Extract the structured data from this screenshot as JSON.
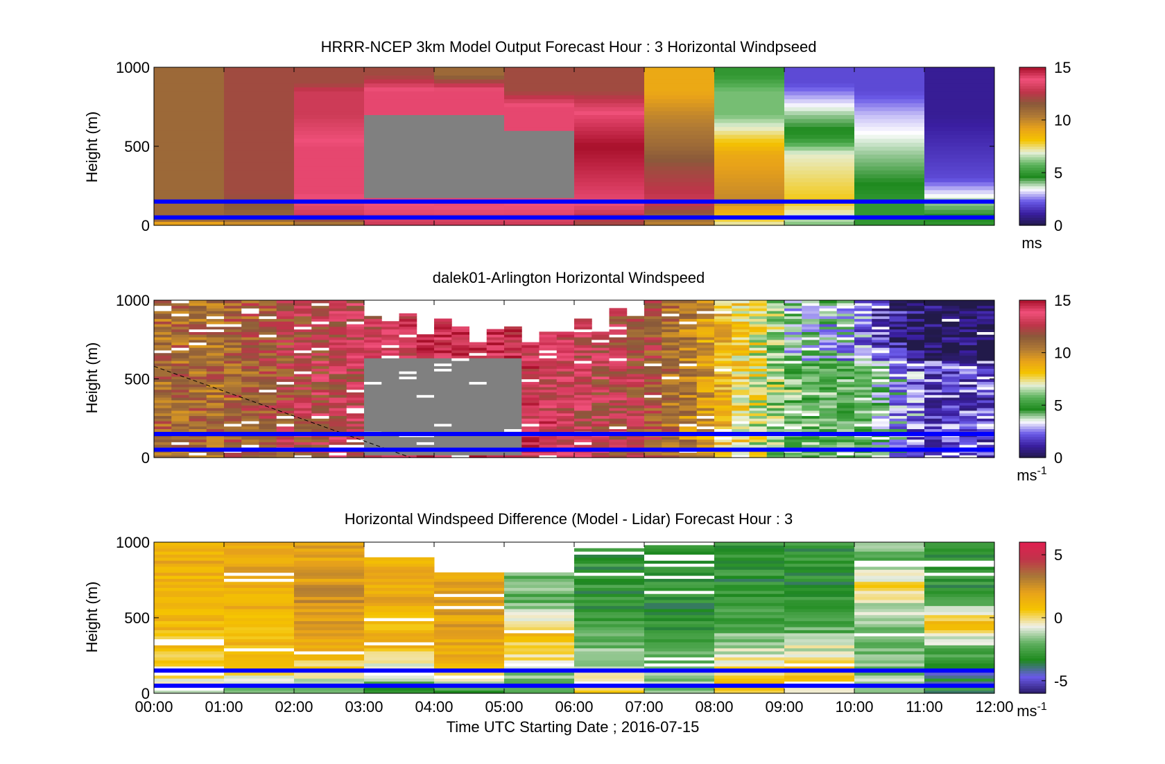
{
  "figure": {
    "xlabel": "Time UTC  Starting Date ; 2016-07-15",
    "xticks": [
      "00:00",
      "01:00",
      "02:00",
      "03:00",
      "04:00",
      "05:00",
      "06:00",
      "07:00",
      "08:00",
      "09:00",
      "10:00",
      "11:00",
      "12:00"
    ]
  },
  "colors": {
    "blue_line": "#0000ff",
    "missing": "#808080",
    "ws_stops": [
      "#221a4a",
      "#3a1ea0",
      "#6a5ae8",
      "#ffffff",
      "#1e8a1e",
      "#5ab25a",
      "#e6f0d8",
      "#f5c400",
      "#e8a21a",
      "#b07a35",
      "#8a5a3a",
      "#c0344a",
      "#f0507a",
      "#a8102a"
    ],
    "diff_stops": [
      "#2a1a6a",
      "#6a5ae8",
      "#1e8a1e",
      "#60b060",
      "#f0f0e8",
      "#f5c400",
      "#e8a21a",
      "#a87638",
      "#c0344a",
      "#e02050"
    ]
  },
  "chart_data": [
    {
      "type": "heatmap",
      "title": "HRRR-NCEP 3km Model Output   Forecast Hour : 3 Horizontal Windpseed",
      "ylabel": "Height (m)",
      "ylim": [
        0,
        1000
      ],
      "yticks": [
        "1000",
        "500",
        "0"
      ],
      "xlim": [
        "00:00",
        "12:00"
      ],
      "colorbar": {
        "ticks": [
          "15",
          "10",
          "5",
          "0"
        ],
        "label": "ms",
        "range": [
          0,
          15
        ]
      },
      "reference_lines_m": [
        150,
        50
      ],
      "columns": [
        {
          "time": "00:00",
          "levels": [
            [
              0,
              8
            ],
            [
              30,
              11
            ],
            [
              200,
              11
            ],
            [
              500,
              11
            ],
            [
              800,
              11
            ],
            [
              950,
              11
            ]
          ]
        },
        {
          "time": "01:00",
          "levels": [
            [
              0,
              9
            ],
            [
              30,
              11
            ],
            [
              200,
              12
            ],
            [
              500,
              12
            ],
            [
              800,
              12
            ],
            [
              950,
              12
            ]
          ]
        },
        {
          "time": "02:00",
          "levels": [
            [
              0,
              10
            ],
            [
              60,
              13
            ],
            [
              200,
              14
            ],
            [
              500,
              14
            ],
            [
              700,
              13
            ],
            [
              850,
              13
            ],
            [
              900,
              12
            ]
          ]
        },
        {
          "time": "03:00",
          "levels": [
            [
              0,
              13
            ],
            [
              160,
              14
            ],
            [
              700,
              14
            ],
            [
              850,
              14
            ],
            [
              950,
              12
            ]
          ]
        },
        {
          "time": "04:00",
          "levels": [
            [
              0,
              13
            ],
            [
              150,
              14
            ],
            [
              750,
              14
            ],
            [
              850,
              14
            ],
            [
              950,
              11
            ]
          ]
        },
        {
          "time": "05:00",
          "levels": [
            [
              0,
              13
            ],
            [
              160,
              14
            ],
            [
              600,
              14
            ],
            [
              750,
              14
            ],
            [
              850,
              12
            ]
          ]
        },
        {
          "time": "06:00",
          "levels": [
            [
              0,
              12
            ],
            [
              160,
              14
            ],
            [
              500,
              15
            ],
            [
              700,
              14
            ],
            [
              850,
              12
            ]
          ]
        },
        {
          "time": "07:00",
          "levels": [
            [
              0,
              10
            ],
            [
              150,
              13
            ],
            [
              350,
              12
            ],
            [
              500,
              11
            ],
            [
              700,
              10
            ],
            [
              850,
              9
            ]
          ]
        },
        {
          "time": "08:00",
          "levels": [
            [
              0,
              7
            ],
            [
              150,
              10
            ],
            [
              450,
              9
            ],
            [
              700,
              6
            ],
            [
              850,
              6
            ],
            [
              950,
              5
            ]
          ]
        },
        {
          "time": "09:00",
          "levels": [
            [
              0,
              6
            ],
            [
              150,
              8
            ],
            [
              450,
              7
            ],
            [
              550,
              5
            ],
            [
              700,
              4
            ],
            [
              900,
              2
            ]
          ]
        },
        {
          "time": "10:00",
          "levels": [
            [
              0,
              5
            ],
            [
              150,
              5
            ],
            [
              450,
              4
            ],
            [
              700,
              3
            ],
            [
              850,
              2
            ]
          ]
        },
        {
          "time": "11:00",
          "levels": [
            [
              0,
              5
            ],
            [
              150,
              4
            ],
            [
              300,
              2
            ],
            [
              700,
              1
            ],
            [
              950,
              1
            ]
          ]
        }
      ]
    },
    {
      "type": "heatmap",
      "title": "dalek01-Arlington  Horizontal Windspeed",
      "ylabel": "Height (m)",
      "ylim": [
        0,
        1000
      ],
      "yticks": [
        "1000",
        "500",
        "0"
      ],
      "xlim": [
        "00:00",
        "12:00"
      ],
      "colorbar": {
        "ticks": [
          "15",
          "10",
          "5",
          "0"
        ],
        "label": "ms",
        "label_sup": "-1",
        "range": [
          0,
          15
        ]
      },
      "reference_lines_m": [
        150,
        50
      ],
      "dashed_line_m": [
        [
          "00:00",
          580
        ],
        [
          "03:40",
          0
        ]
      ],
      "missing_region": {
        "from": "03:00",
        "to": "05:20",
        "below_m": 650
      },
      "approx_trend": [
        {
          "time": "00:00",
          "value": 11
        },
        {
          "time": "01:00",
          "value": 11
        },
        {
          "time": "02:00",
          "value": 12
        },
        {
          "time": "03:00",
          "value": 13
        },
        {
          "time": "04:00",
          "value": 14
        },
        {
          "time": "05:00",
          "value": 14
        },
        {
          "time": "06:00",
          "value": 13
        },
        {
          "time": "07:00",
          "value": 12
        },
        {
          "time": "08:00",
          "value": 9
        },
        {
          "time": "09:00",
          "value": 6
        },
        {
          "time": "10:00",
          "value": 5
        },
        {
          "time": "11:00",
          "value": 2
        }
      ]
    },
    {
      "type": "heatmap",
      "title": "Horizontal Windspeed Difference (Model - Lidar) Forecast Hour : 3",
      "ylabel": "Height (m)",
      "ylim": [
        0,
        1000
      ],
      "yticks": [
        "1000",
        "500",
        "0"
      ],
      "xlim": [
        "00:00",
        "12:00"
      ],
      "colorbar": {
        "ticks": [
          "5",
          "0",
          "-5"
        ],
        "label": "ms",
        "label_sup": "-1",
        "range": [
          -6,
          6
        ]
      },
      "reference_lines_m": [
        150,
        50
      ],
      "columns": [
        {
          "time": "00:00",
          "levels": [
            [
              0,
              -1
            ],
            [
              150,
              0
            ],
            [
              400,
              1
            ],
            [
              700,
              1
            ],
            [
              900,
              1.5
            ]
          ]
        },
        {
          "time": "01:00",
          "levels": [
            [
              0,
              -2
            ],
            [
              150,
              0
            ],
            [
              300,
              1
            ],
            [
              600,
              1.5
            ],
            [
              900,
              2
            ]
          ]
        },
        {
          "time": "02:00",
          "levels": [
            [
              0,
              -2
            ],
            [
              150,
              0
            ],
            [
              300,
              1.5
            ],
            [
              600,
              2.5
            ],
            [
              850,
              2
            ]
          ]
        },
        {
          "time": "03:00",
          "levels": [
            [
              0,
              -3
            ],
            [
              150,
              -1
            ],
            [
              300,
              1
            ],
            [
              600,
              1.5
            ],
            [
              850,
              1.5
            ]
          ]
        },
        {
          "time": "04:00",
          "levels": [
            [
              0,
              -3
            ],
            [
              150,
              1
            ],
            [
              400,
              2
            ],
            [
              700,
              2
            ]
          ]
        },
        {
          "time": "05:00",
          "levels": [
            [
              0,
              -3
            ],
            [
              150,
              -1
            ],
            [
              400,
              1
            ],
            [
              600,
              -2
            ],
            [
              750,
              -2
            ]
          ]
        },
        {
          "time": "06:00",
          "levels": [
            [
              0,
              0
            ],
            [
              150,
              -1
            ],
            [
              400,
              -2
            ],
            [
              600,
              -3
            ],
            [
              850,
              -3
            ]
          ]
        },
        {
          "time": "07:00",
          "levels": [
            [
              0,
              -1
            ],
            [
              150,
              -2
            ],
            [
              400,
              -3
            ],
            [
              700,
              -3
            ],
            [
              900,
              -3
            ]
          ]
        },
        {
          "time": "08:00",
          "levels": [
            [
              0,
              1
            ],
            [
              150,
              0
            ],
            [
              400,
              -2
            ],
            [
              700,
              -3
            ],
            [
              900,
              -3
            ]
          ]
        },
        {
          "time": "09:00",
          "levels": [
            [
              0,
              0
            ],
            [
              150,
              1
            ],
            [
              400,
              -2
            ],
            [
              600,
              -3
            ],
            [
              900,
              -3
            ]
          ]
        },
        {
          "time": "10:00",
          "levels": [
            [
              0,
              -1
            ],
            [
              150,
              -2
            ],
            [
              400,
              -2
            ],
            [
              700,
              0
            ],
            [
              900,
              -2
            ]
          ]
        },
        {
          "time": "11:00",
          "levels": [
            [
              0,
              -3
            ],
            [
              150,
              -4
            ],
            [
              300,
              -2
            ],
            [
              450,
              1
            ],
            [
              650,
              -3
            ],
            [
              900,
              -3
            ]
          ]
        }
      ]
    }
  ]
}
